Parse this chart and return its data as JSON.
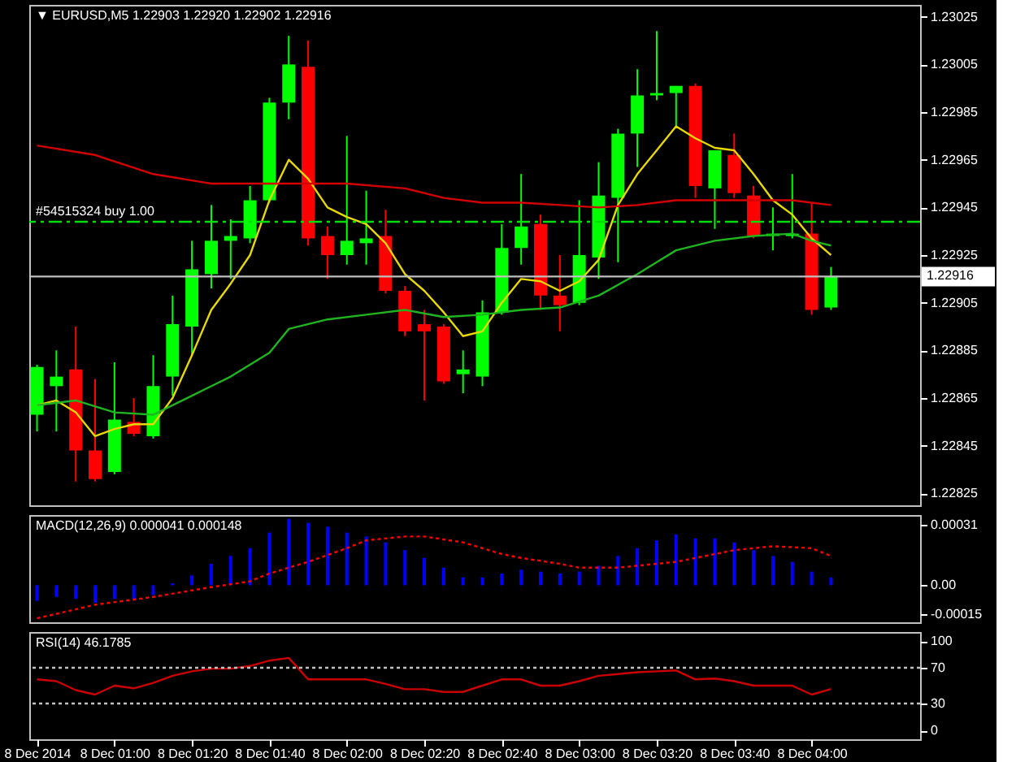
{
  "chart_data": [
    {
      "type": "candlestick",
      "title": "▼ EURUSD,M5  1.22903 1.22920 1.22902 1.22916",
      "x": [
        "2014-12-08T00:40",
        "2014-12-08T00:45",
        "2014-12-08T00:50",
        "2014-12-08T00:55",
        "2014-12-08T01:00",
        "2014-12-08T01:05",
        "2014-12-08T01:10",
        "2014-12-08T01:15",
        "2014-12-08T01:20",
        "2014-12-08T01:25",
        "2014-12-08T01:30",
        "2014-12-08T01:35",
        "2014-12-08T01:40",
        "2014-12-08T01:45",
        "2014-12-08T01:50",
        "2014-12-08T01:55",
        "2014-12-08T02:00",
        "2014-12-08T02:05",
        "2014-12-08T02:10",
        "2014-12-08T02:15",
        "2014-12-08T02:20",
        "2014-12-08T02:25",
        "2014-12-08T02:30",
        "2014-12-08T02:35",
        "2014-12-08T02:40",
        "2014-12-08T02:45",
        "2014-12-08T02:50",
        "2014-12-08T02:55",
        "2014-12-08T03:00",
        "2014-12-08T03:05",
        "2014-12-08T03:10",
        "2014-12-08T03:15",
        "2014-12-08T03:20",
        "2014-12-08T03:25",
        "2014-12-08T03:30",
        "2014-12-08T03:35",
        "2014-12-08T03:40",
        "2014-12-08T03:45",
        "2014-12-08T03:50",
        "2014-12-08T03:55",
        "2014-12-08T04:00",
        "2014-12-08T04:05"
      ],
      "ohlc": [
        [
          1.22858,
          1.22879,
          1.22851,
          1.22878
        ],
        [
          1.2287,
          1.22885,
          1.22851,
          1.22874
        ],
        [
          1.22877,
          1.22895,
          1.2283,
          1.22843
        ],
        [
          1.22843,
          1.22873,
          1.2283,
          1.22831
        ],
        [
          1.22834,
          1.2288,
          1.22833,
          1.22856
        ],
        [
          1.22855,
          1.22865,
          1.22849,
          1.2285
        ],
        [
          1.22849,
          1.22883,
          1.22848,
          1.2287
        ],
        [
          1.22874,
          1.22908,
          1.22866,
          1.22896
        ],
        [
          1.22895,
          1.22931,
          1.22883,
          1.22919
        ],
        [
          1.22917,
          1.22946,
          1.22911,
          1.22931
        ],
        [
          1.22931,
          1.2294,
          1.22915,
          1.22933
        ],
        [
          1.22932,
          1.22954,
          1.2293,
          1.22948
        ],
        [
          1.22948,
          1.22991,
          1.22947,
          1.22989
        ],
        [
          1.22989,
          1.23017,
          1.22982,
          1.23005
        ],
        [
          1.23004,
          1.23015,
          1.22929,
          1.22932
        ],
        [
          1.22933,
          1.22937,
          1.22915,
          1.22925
        ],
        [
          1.22925,
          1.22975,
          1.22921,
          1.22931
        ],
        [
          1.2293,
          1.22952,
          1.22921,
          1.22932
        ],
        [
          1.22933,
          1.22944,
          1.22909,
          1.2291
        ],
        [
          1.2291,
          1.22912,
          1.22891,
          1.22893
        ],
        [
          1.22896,
          1.22902,
          1.22864,
          1.22893
        ],
        [
          1.22895,
          1.22896,
          1.22871,
          1.22872
        ],
        [
          1.22875,
          1.22885,
          1.22867,
          1.22877
        ],
        [
          1.22874,
          1.22906,
          1.2287,
          1.22901
        ],
        [
          1.22901,
          1.22938,
          1.229,
          1.22928
        ],
        [
          1.22928,
          1.22959,
          1.22921,
          1.22937
        ],
        [
          1.22938,
          1.22942,
          1.22902,
          1.22908
        ],
        [
          1.22908,
          1.22925,
          1.22893,
          1.22904
        ],
        [
          1.22905,
          1.22948,
          1.22904,
          1.22925
        ],
        [
          1.22924,
          1.22964,
          1.22915,
          1.2295
        ],
        [
          1.22949,
          1.22978,
          1.22922,
          1.22976
        ],
        [
          1.22976,
          1.23003,
          1.22962,
          1.22992
        ],
        [
          1.22992,
          1.23019,
          1.2299,
          1.22993
        ],
        [
          1.22993,
          1.22996,
          1.22979,
          1.22996
        ],
        [
          1.22996,
          1.22997,
          1.22949,
          1.22954
        ],
        [
          1.22953,
          1.22969,
          1.22936,
          1.22969
        ],
        [
          1.22967,
          1.22976,
          1.22949,
          1.22951
        ],
        [
          1.2295,
          1.22954,
          1.22932,
          1.22933
        ],
        [
          1.22933,
          1.22945,
          1.22927,
          1.22934
        ],
        [
          1.22933,
          1.22959,
          1.22932,
          1.22934
        ],
        [
          1.22934,
          1.22947,
          1.229,
          1.22902
        ],
        [
          1.22903,
          1.2292,
          1.22902,
          1.22916
        ]
      ],
      "colors": [
        "#00ff00",
        "#00ff00",
        "#ff0000",
        "#ff0000",
        "#00ff00",
        "#ff0000",
        "#00ff00",
        "#00ff00",
        "#00ff00",
        "#00ff00",
        "#00ff00",
        "#00ff00",
        "#00ff00",
        "#00ff00",
        "#ff0000",
        "#ff0000",
        "#00ff00",
        "#00ff00",
        "#ff0000",
        "#ff0000",
        "#ff0000",
        "#ff0000",
        "#00ff00",
        "#00ff00",
        "#00ff00",
        "#00ff00",
        "#ff0000",
        "#ff0000",
        "#00ff00",
        "#00ff00",
        "#00ff00",
        "#00ff00",
        "#00ff00",
        "#00ff00",
        "#ff0000",
        "#00ff00",
        "#ff0000",
        "#ff0000",
        "#00ff00",
        "#00ff00",
        "#ff0000",
        "#00ff00"
      ],
      "series": [
        {
          "type": "line",
          "color": "#e6d800",
          "values": [
            1.22862,
            1.22864,
            1.22859,
            1.22849,
            1.22852,
            1.22854,
            1.22854,
            1.22865,
            1.22883,
            1.22902,
            1.22913,
            1.22925,
            1.22948,
            1.22965,
            1.22957,
            1.22945,
            1.22941,
            1.22938,
            1.2293,
            1.22917,
            1.2291,
            1.22901,
            1.22891,
            1.22893,
            1.22905,
            1.22915,
            1.22914,
            1.2291,
            1.22914,
            1.22923,
            1.22946,
            1.22959,
            1.22969,
            1.22979,
            1.22974,
            1.2297,
            1.22969,
            1.22959,
            1.22948,
            1.22942,
            1.22932,
            1.22925
          ]
        },
        {
          "type": "line",
          "color": "#1fb51f",
          "x": [
            "2014-12-08T00:40",
            "2014-12-08T00:50",
            "2014-12-08T01:00",
            "2014-12-08T01:10",
            "2014-12-08T01:20",
            "2014-12-08T01:30",
            "2014-12-08T01:40",
            "2014-12-08T01:45",
            "2014-12-08T01:55",
            "2014-12-08T02:05",
            "2014-12-08T02:15",
            "2014-12-08T02:25",
            "2014-12-08T02:35",
            "2014-12-08T02:45",
            "2014-12-08T02:55",
            "2014-12-08T03:05",
            "2014-12-08T03:15",
            "2014-12-08T03:20",
            "2014-12-08T03:25",
            "2014-12-08T03:35",
            "2014-12-08T03:45",
            "2014-12-08T03:55",
            "2014-12-08T04:00",
            "2014-12-08T04:05"
          ],
          "values": [
            1.22862,
            1.22864,
            1.22859,
            1.22858,
            1.22866,
            1.22874,
            1.22884,
            1.22894,
            1.22898,
            1.229,
            1.22902,
            1.22899,
            1.229,
            1.22902,
            1.22903,
            1.22908,
            1.22917,
            1.22922,
            1.22927,
            1.22931,
            1.22933,
            1.22934,
            1.22931,
            1.22929
          ]
        },
        {
          "type": "line",
          "color": "#d40000",
          "x": [
            "2014-12-08T00:40",
            "2014-12-08T00:55",
            "2014-12-08T01:10",
            "2014-12-08T01:25",
            "2014-12-08T01:40",
            "2014-12-08T02:00",
            "2014-12-08T02:15",
            "2014-12-08T02:25",
            "2014-12-08T02:35",
            "2014-12-08T02:45",
            "2014-12-08T02:55",
            "2014-12-08T03:05",
            "2014-12-08T03:15",
            "2014-12-08T03:25",
            "2014-12-08T03:35",
            "2014-12-08T03:45",
            "2014-12-08T03:55",
            "2014-12-08T04:00",
            "2014-12-08T04:05"
          ],
          "values": [
            1.22971,
            1.22967,
            1.22959,
            1.22955,
            1.22955,
            1.22955,
            1.22953,
            1.22949,
            1.22947,
            1.22947,
            1.22946,
            1.22945,
            1.22946,
            1.22948,
            1.22948,
            1.22948,
            1.22948,
            1.22947,
            1.22946
          ]
        }
      ],
      "ref_lines": [
        {
          "axis": "y",
          "value": 1.22939,
          "label": "#54515324 buy 1.00",
          "color": "#00e000",
          "line_style": "dashdot"
        },
        {
          "axis": "y",
          "value": 1.22916,
          "label": "1.22916",
          "color": "#c0c0c0",
          "line_style": "solid"
        }
      ],
      "xlim": [
        "2014-12-08T00:38",
        "2014-12-08T04:28"
      ],
      "ylim": [
        1.2282,
        1.2303
      ],
      "yticks": [
        1.22825,
        1.22845,
        1.22865,
        1.22885,
        1.22905,
        1.22925,
        1.22945,
        1.22965,
        1.22985,
        1.23005,
        1.23025
      ],
      "tick_labels": "y"
    },
    {
      "type": "bar",
      "title": "MACD(12,26,9) 0.000041 0.000148",
      "x": [
        "2014-12-08T00:40",
        "2014-12-08T00:45",
        "2014-12-08T00:50",
        "2014-12-08T00:55",
        "2014-12-08T01:00",
        "2014-12-08T01:05",
        "2014-12-08T01:10",
        "2014-12-08T01:15",
        "2014-12-08T01:20",
        "2014-12-08T01:25",
        "2014-12-08T01:30",
        "2014-12-08T01:35",
        "2014-12-08T01:40",
        "2014-12-08T01:45",
        "2014-12-08T01:50",
        "2014-12-08T01:55",
        "2014-12-08T02:00",
        "2014-12-08T02:05",
        "2014-12-08T02:10",
        "2014-12-08T02:15",
        "2014-12-08T02:20",
        "2014-12-08T02:25",
        "2014-12-08T02:30",
        "2014-12-08T02:35",
        "2014-12-08T02:40",
        "2014-12-08T02:45",
        "2014-12-08T02:50",
        "2014-12-08T02:55",
        "2014-12-08T03:00",
        "2014-12-08T03:05",
        "2014-12-08T03:10",
        "2014-12-08T03:15",
        "2014-12-08T03:20",
        "2014-12-08T03:25",
        "2014-12-08T03:30",
        "2014-12-08T03:35",
        "2014-12-08T03:40",
        "2014-12-08T03:45",
        "2014-12-08T03:50",
        "2014-12-08T03:55",
        "2014-12-08T04:00",
        "2014-12-08T04:05"
      ],
      "series": [
        {
          "type": "bar",
          "color": "#0000ff",
          "values": [
            -8e-05,
            -6e-05,
            -7e-05,
            -9e-05,
            -7e-05,
            -7e-05,
            -5e-05,
            1e-05,
            5e-05,
            0.00011,
            0.00015,
            0.00019,
            0.00027,
            0.00034,
            0.00032,
            0.0003,
            0.00027,
            0.00025,
            0.00022,
            0.00018,
            0.00014,
            9e-05,
            4e-05,
            4e-05,
            6e-05,
            8e-05,
            7e-05,
            6e-05,
            7e-05,
            0.0001,
            0.00015,
            0.00019,
            0.00023,
            0.00026,
            0.00024,
            0.00024,
            0.00022,
            0.00018,
            0.00015,
            0.00012,
            7e-05,
            4e-05
          ]
        },
        {
          "type": "line",
          "color": "#ff0000",
          "line_style": "dotted",
          "x": [
            "2014-12-08T00:40",
            "2014-12-08T00:55",
            "2014-12-08T01:10",
            "2014-12-08T01:25",
            "2014-12-08T01:35",
            "2014-12-08T01:40",
            "2014-12-08T01:50",
            "2014-12-08T02:00",
            "2014-12-08T02:05",
            "2014-12-08T02:15",
            "2014-12-08T02:20",
            "2014-12-08T02:30",
            "2014-12-08T02:40",
            "2014-12-08T02:45",
            "2014-12-08T02:55",
            "2014-12-08T03:00",
            "2014-12-08T03:10",
            "2014-12-08T03:20",
            "2014-12-08T03:25",
            "2014-12-08T03:35",
            "2014-12-08T03:40",
            "2014-12-08T03:50",
            "2014-12-08T04:00",
            "2014-12-08T04:05"
          ],
          "values": [
            -0.00017,
            -0.0001,
            -6e-05,
            -1e-05,
            2e-05,
            6e-05,
            0.00012,
            0.00019,
            0.00023,
            0.00025,
            0.00025,
            0.00022,
            0.00016,
            0.00014,
            0.00011,
            9e-05,
            9e-05,
            0.00011,
            0.00012,
            0.00016,
            0.00018,
            0.0002,
            0.00019,
            0.00015
          ]
        }
      ],
      "xlim": [
        "2014-12-08T00:38",
        "2014-12-08T04:28"
      ],
      "ylim": [
        -0.00019,
        0.00036
      ],
      "yticks": [
        -0.00015,
        {
          "value": 0,
          "label": "0.00"
        },
        0.00031
      ],
      "tick_labels": "y"
    },
    {
      "type": "line",
      "title": "RSI(14) 46.1785",
      "x": [
        "2014-12-08T00:40",
        "2014-12-08T00:45",
        "2014-12-08T00:50",
        "2014-12-08T00:55",
        "2014-12-08T01:00",
        "2014-12-08T01:05",
        "2014-12-08T01:10",
        "2014-12-08T01:15",
        "2014-12-08T01:20",
        "2014-12-08T01:25",
        "2014-12-08T01:30",
        "2014-12-08T01:35",
        "2014-12-08T01:40",
        "2014-12-08T01:45",
        "2014-12-08T01:50",
        "2014-12-08T01:55",
        "2014-12-08T02:00",
        "2014-12-08T02:05",
        "2014-12-08T02:10",
        "2014-12-08T02:15",
        "2014-12-08T02:20",
        "2014-12-08T02:25",
        "2014-12-08T02:30",
        "2014-12-08T02:35",
        "2014-12-08T02:40",
        "2014-12-08T02:45",
        "2014-12-08T02:50",
        "2014-12-08T02:55",
        "2014-12-08T03:00",
        "2014-12-08T03:05",
        "2014-12-08T03:10",
        "2014-12-08T03:15",
        "2014-12-08T03:20",
        "2014-12-08T03:25",
        "2014-12-08T03:30",
        "2014-12-08T03:35",
        "2014-12-08T03:40",
        "2014-12-08T03:45",
        "2014-12-08T03:50",
        "2014-12-08T03:55",
        "2014-12-08T04:00",
        "2014-12-08T04:05"
      ],
      "series": [
        {
          "color": "#cc0000",
          "values": [
            57,
            55,
            45,
            40,
            50,
            47,
            53,
            61,
            66,
            69,
            69,
            72,
            78,
            81,
            57,
            57,
            57,
            57,
            52,
            46,
            46,
            43,
            43,
            50,
            57,
            57,
            50,
            50,
            55,
            61,
            63,
            65,
            66,
            67,
            57,
            58,
            55,
            50,
            50,
            50,
            40,
            46.1785
          ]
        }
      ],
      "ref_lines": [
        {
          "axis": "y",
          "value": 70,
          "color": "#c0c0c0",
          "line_style": "dotted"
        },
        {
          "axis": "y",
          "value": 30,
          "color": "#c0c0c0",
          "line_style": "dotted"
        }
      ],
      "xlim": [
        "2014-12-08T00:38",
        "2014-12-08T04:28"
      ],
      "xticks": [
        {
          "value": "2014-12-08T00:40",
          "label": "8 Dec 2014"
        },
        {
          "value": "2014-12-08T01:00",
          "label": "8 Dec 01:00"
        },
        {
          "value": "2014-12-08T01:20",
          "label": "8 Dec 01:20"
        },
        {
          "value": "2014-12-08T01:40",
          "label": "8 Dec 01:40"
        },
        {
          "value": "2014-12-08T02:00",
          "label": "8 Dec 02:00"
        },
        {
          "value": "2014-12-08T02:20",
          "label": "8 Dec 02:20"
        },
        {
          "value": "2014-12-08T02:40",
          "label": "8 Dec 02:40"
        },
        {
          "value": "2014-12-08T03:00",
          "label": "8 Dec 03:00"
        },
        {
          "value": "2014-12-08T03:20",
          "label": "8 Dec 03:20"
        },
        {
          "value": "2014-12-08T03:40",
          "label": "8 Dec 03:40"
        },
        {
          "value": "2014-12-08T04:00",
          "label": "8 Dec 04:00"
        }
      ],
      "ylim": [
        -10,
        110
      ],
      "yticks": [
        0,
        30,
        70,
        100
      ]
    }
  ]
}
